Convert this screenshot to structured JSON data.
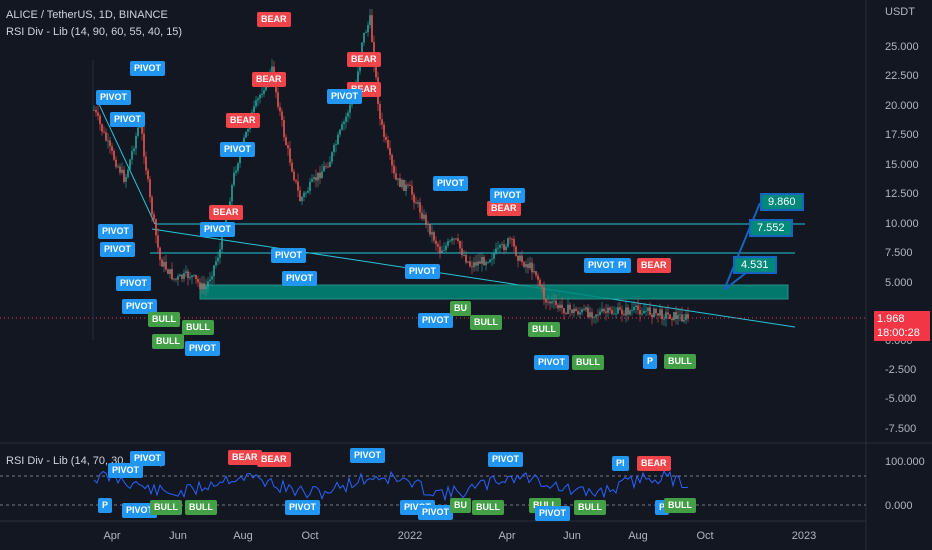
{
  "header": {
    "title": "ALICE / TetherUS, 1D, BINANCE",
    "indicator_main": "RSI Div - Lib (14, 90, 60, 55, 40, 15)",
    "indicator_pane": "RSI Div - Lib (14, 70, 30, 90, 10)"
  },
  "price_axis": {
    "currency": "USDT",
    "ticks": [
      "25.000",
      "22.500",
      "20.000",
      "17.500",
      "15.000",
      "12.500",
      "10.000",
      "7.500",
      "5.000",
      "2.500",
      "0.000",
      "-2.500",
      "-5.000",
      "-7.500"
    ]
  },
  "rsi_axis": {
    "ticks": [
      "100.000",
      "0.000"
    ]
  },
  "time_axis": {
    "ticks": [
      "Apr",
      "Jun",
      "Aug",
      "Oct",
      "2022",
      "Apr",
      "Jun",
      "Aug",
      "Oct",
      "2023"
    ]
  },
  "last_price": {
    "value": "1.968",
    "countdown": "18:00:28"
  },
  "boxes": {
    "b1": "9.860",
    "b2": "7.552",
    "b3": "4.531"
  },
  "labels": {
    "pivot": "PIVOT",
    "bear": "BEAR",
    "bull": "BULL",
    "bu": "BU",
    "p": "P",
    "pi": "PI"
  },
  "colors": {
    "background": "#131722",
    "pivot": "#2196f3",
    "bear": "#f0444b",
    "bull": "#43a047",
    "line": "#26c6da",
    "zone": "#00897b",
    "rsi": "#2962ff"
  }
}
